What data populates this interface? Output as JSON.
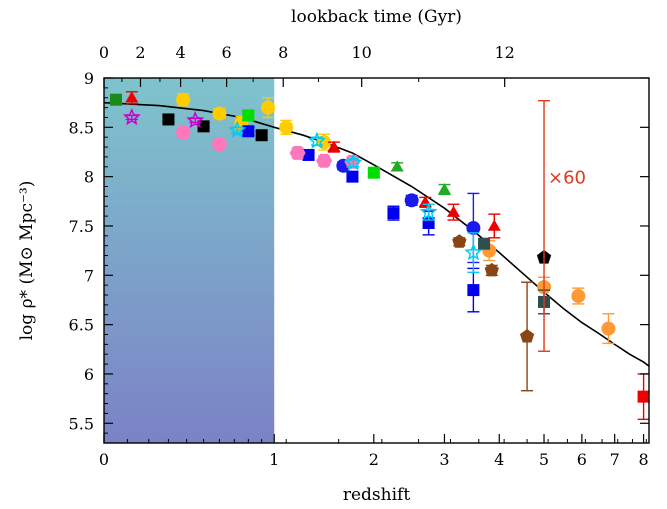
{
  "chart_data": {
    "type": "scatter",
    "xlabel": "redshift",
    "ylabel": "log ρ* (M⊙ Mpc⁻³)",
    "top_axis_label": "lookback time (Gyr)",
    "x_axis_scale": "log(1+z)",
    "xlim": [
      0,
      8.2
    ],
    "ylim": [
      5.3,
      9.0
    ],
    "x_ticks": [
      0,
      1,
      2,
      3,
      4,
      5,
      6,
      7,
      8
    ],
    "y_ticks": [
      5.5,
      6,
      6.5,
      7,
      7.5,
      8,
      8.5,
      9
    ],
    "y_tick_labels": [
      "5.5",
      "6",
      "6.5",
      "7",
      "7.5",
      "8",
      "8.5",
      "9"
    ],
    "top_ticks": [
      0,
      2,
      4,
      6,
      8,
      10,
      12
    ],
    "shaded_region": {
      "x_from": 0,
      "x_to": 1,
      "colors": [
        "#7ec4cc",
        "#7b82c6"
      ]
    },
    "annotation": {
      "text": "×60",
      "x": 5.0,
      "color": "#e03a1e"
    },
    "fit_curve": {
      "color": "#000000",
      "x": [
        0,
        0.25,
        0.5,
        0.75,
        1,
        1.25,
        1.5,
        1.75,
        2,
        2.5,
        3,
        3.5,
        4,
        4.5,
        5,
        5.5,
        6,
        6.5,
        7,
        7.5,
        8,
        8.2
      ],
      "y": [
        8.75,
        8.72,
        8.67,
        8.6,
        8.5,
        8.42,
        8.33,
        8.24,
        8.12,
        7.9,
        7.68,
        7.45,
        7.23,
        7.02,
        6.83,
        6.66,
        6.52,
        6.41,
        6.3,
        6.2,
        6.12,
        6.08
      ]
    },
    "series": [
      {
        "marker": "circle",
        "color": "#ffcc00",
        "points": [
          {
            "x": 0.38,
            "y": 8.78,
            "e": 0.06
          },
          {
            "x": 0.6,
            "y": 8.64,
            "e": 0.05
          },
          {
            "x": 0.95,
            "y": 8.7,
            "e": 0.1
          },
          {
            "x": 1.1,
            "y": 8.5,
            "e": 0.07
          },
          {
            "x": 1.45,
            "y": 8.35,
            "e": 0.08
          },
          {
            "x": 0.75,
            "y": 8.55,
            "e": 0.06
          }
        ]
      },
      {
        "marker": "circle",
        "color": "#ff9933",
        "points": [
          {
            "x": 3.8,
            "y": 7.25,
            "e": 0.1
          },
          {
            "x": 5.0,
            "y": 6.88,
            "e": 0.1
          },
          {
            "x": 5.9,
            "y": 6.79,
            "e": 0.08
          },
          {
            "x": 6.8,
            "y": 6.46,
            "e": 0.15
          }
        ]
      },
      {
        "marker": "square",
        "color": "#00dd00",
        "points": [
          {
            "x": 0.8,
            "y": 8.62,
            "e": 0.05
          },
          {
            "x": 2.0,
            "y": 8.04,
            "e": 0.04
          }
        ]
      },
      {
        "marker": "square",
        "color": "#1a8a1a",
        "points": [
          {
            "x": 0.05,
            "y": 8.78,
            "e": 0.04
          }
        ]
      },
      {
        "marker": "square",
        "color": "#0000ee",
        "points": [
          {
            "x": 0.8,
            "y": 8.46,
            "e": 0.04
          },
          {
            "x": 1.3,
            "y": 8.22,
            "e": 0.05
          },
          {
            "x": 1.75,
            "y": 8.0,
            "e": 0.05
          },
          {
            "x": 2.25,
            "y": 7.63,
            "e": 0.07
          },
          {
            "x": 2.75,
            "y": 7.53,
            "e": 0.12
          },
          {
            "x": 3.5,
            "y": 6.85,
            "e": 0.22
          }
        ]
      },
      {
        "marker": "square",
        "color": "#000000",
        "points": [
          {
            "x": 0.3,
            "y": 8.58,
            "e": 0.03
          },
          {
            "x": 0.5,
            "y": 8.51,
            "e": 0.03
          },
          {
            "x": 0.9,
            "y": 8.42,
            "e": 0.04
          }
        ]
      },
      {
        "marker": "square",
        "color": "#2f4f4f",
        "points": [
          {
            "x": 3.7,
            "y": 7.32,
            "e": 0.05
          },
          {
            "x": 5.0,
            "y": 6.73,
            "e": 0.12
          }
        ]
      },
      {
        "marker": "square",
        "color": "#ee0000",
        "points": [
          {
            "x": 8.0,
            "y": 5.77,
            "e": 0.23
          }
        ]
      },
      {
        "marker": "triangle",
        "color": "#ee0000",
        "points": [
          {
            "x": 0.12,
            "y": 8.8,
            "e": 0.06
          },
          {
            "x": 1.55,
            "y": 8.3,
            "e": 0.05
          },
          {
            "x": 2.7,
            "y": 7.74,
            "e": 0.05
          },
          {
            "x": 3.15,
            "y": 7.64,
            "e": 0.08
          },
          {
            "x": 3.9,
            "y": 7.5,
            "e": 0.12
          }
        ]
      },
      {
        "marker": "triangle",
        "color": "#22aa22",
        "points": [
          {
            "x": 2.3,
            "y": 8.1,
            "e": 0.04
          },
          {
            "x": 3.0,
            "y": 7.87,
            "e": 0.05
          }
        ]
      },
      {
        "marker": "circle",
        "color": "#1a1aee",
        "points": [
          {
            "x": 1.65,
            "y": 8.11,
            "e": 0.04
          },
          {
            "x": 2.5,
            "y": 7.76,
            "e": 0.05
          },
          {
            "x": 3.5,
            "y": 7.48,
            "e": 0.35
          }
        ]
      },
      {
        "marker": "hexagon",
        "color": "#ff77bb",
        "points": [
          {
            "x": 0.38,
            "y": 8.45,
            "e": 0.04
          },
          {
            "x": 0.6,
            "y": 8.33,
            "e": 0.05
          },
          {
            "x": 1.2,
            "y": 8.24,
            "e": 0.05
          },
          {
            "x": 1.45,
            "y": 8.16,
            "e": 0.05
          },
          {
            "x": 1.75,
            "y": 8.15,
            "e": 0.05
          }
        ]
      },
      {
        "marker": "star",
        "color": "#cc00cc",
        "points": [
          {
            "x": 0.12,
            "y": 8.6,
            "e": 0.02
          },
          {
            "x": 0.45,
            "y": 8.57,
            "e": 0.02
          }
        ]
      },
      {
        "marker": "star",
        "color": "#00ccee",
        "points": [
          {
            "x": 0.72,
            "y": 8.47,
            "e": 0.03
          },
          {
            "x": 1.38,
            "y": 8.36,
            "e": 0.04
          },
          {
            "x": 2.75,
            "y": 7.64,
            "e": 0.08
          },
          {
            "x": 3.5,
            "y": 7.23,
            "e": 0.2
          },
          {
            "x": 1.76,
            "y": 8.14,
            "e": 0.04
          }
        ]
      },
      {
        "marker": "pentagon",
        "color": "#8b4513",
        "points": [
          {
            "x": 3.25,
            "y": 7.34,
            "e": 0.04
          },
          {
            "x": 3.85,
            "y": 7.05,
            "e": 0.05
          },
          {
            "x": 4.6,
            "y": 6.38,
            "e": 0.55
          }
        ]
      },
      {
        "marker": "pentagon",
        "color": "#000000",
        "points": [
          {
            "x": 5.0,
            "y": 7.18,
            "e": 0.0
          }
        ]
      },
      {
        "marker": "errorbar",
        "color": "#e03a1e",
        "points": [
          {
            "x": 5.0,
            "y": 7.5,
            "e": 1.27
          }
        ]
      }
    ]
  }
}
